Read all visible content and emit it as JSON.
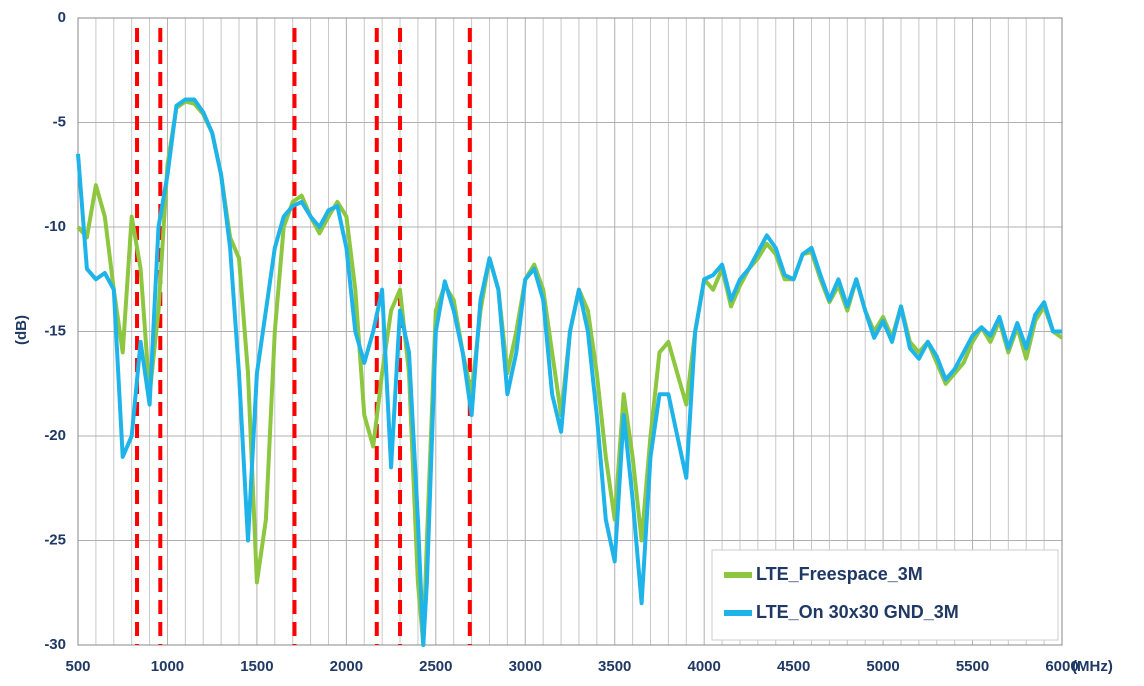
{
  "chart_data": {
    "type": "line",
    "xlabel": "(MHz)",
    "ylabel": "(dB)",
    "xlim": [
      500,
      6000
    ],
    "ylim": [
      -30,
      0
    ],
    "xticks": [
      500,
      1000,
      1500,
      2000,
      2500,
      3000,
      3500,
      4000,
      4500,
      5000,
      5500,
      6000
    ],
    "yticks": [
      0,
      -5,
      -10,
      -15,
      -20,
      -25,
      -30
    ],
    "xgrid": [
      600,
      700,
      800,
      900,
      1100,
      1200,
      1300,
      1400,
      1600,
      1700,
      1800,
      1900,
      2100,
      2200,
      2300,
      2400,
      2600,
      2700,
      2800,
      2900,
      3100,
      3200,
      3300,
      3400,
      3600,
      3700,
      3800,
      3900,
      4100,
      4200,
      4300,
      4400,
      4600,
      4700,
      4800,
      4900,
      5100,
      5200,
      5300,
      5400,
      5600,
      5700,
      5800,
      5900
    ],
    "grid": true,
    "markers": [
      830,
      960,
      1710,
      2170,
      2300,
      2690
    ],
    "marker_color": "#ff0000",
    "legend": "lower right",
    "x": [
      500,
      550,
      600,
      650,
      700,
      750,
      800,
      850,
      900,
      950,
      1000,
      1050,
      1100,
      1150,
      1200,
      1250,
      1300,
      1350,
      1400,
      1450,
      1500,
      1550,
      1600,
      1650,
      1700,
      1750,
      1800,
      1850,
      1900,
      1950,
      2000,
      2050,
      2100,
      2150,
      2200,
      2250,
      2300,
      2350,
      2400,
      2430,
      2450,
      2500,
      2550,
      2600,
      2650,
      2700,
      2750,
      2800,
      2850,
      2900,
      2950,
      3000,
      3050,
      3100,
      3150,
      3200,
      3250,
      3300,
      3350,
      3400,
      3450,
      3500,
      3550,
      3600,
      3650,
      3700,
      3750,
      3800,
      3850,
      3900,
      3950,
      4000,
      4050,
      4100,
      4150,
      4200,
      4250,
      4300,
      4350,
      4400,
      4450,
      4500,
      4550,
      4600,
      4650,
      4700,
      4750,
      4800,
      4850,
      4900,
      4950,
      5000,
      5050,
      5100,
      5150,
      5200,
      5250,
      5300,
      5350,
      5400,
      5450,
      5500,
      5550,
      5600,
      5650,
      5700,
      5750,
      5800,
      5850,
      5900,
      5950,
      6000
    ],
    "series": [
      {
        "name": "LTE_Freespace_3M",
        "color": "#8dc63f",
        "values": [
          -10,
          -10.5,
          -8,
          -9.5,
          -13,
          -16,
          -9.5,
          -12,
          -18,
          -14,
          -7,
          -4.3,
          -4,
          -4.1,
          -4.6,
          -5.5,
          -7.5,
          -10.5,
          -11.5,
          -17,
          -27,
          -24,
          -15,
          -10,
          -8.8,
          -8.5,
          -9.5,
          -10.3,
          -9.5,
          -8.8,
          -9.5,
          -13,
          -19,
          -20.5,
          -17,
          -14,
          -13,
          -17,
          -27,
          -30,
          -25,
          -14,
          -12.8,
          -13.5,
          -16,
          -18,
          -14,
          -11.5,
          -13,
          -17,
          -15,
          -12.5,
          -11.8,
          -13,
          -16,
          -19,
          -15,
          -13,
          -14,
          -17,
          -21,
          -24,
          -18,
          -21,
          -25,
          -20,
          -16,
          -15.5,
          -17,
          -18.5,
          -15,
          -12.5,
          -13,
          -12,
          -13.8,
          -12.8,
          -12,
          -11.5,
          -10.8,
          -11.3,
          -12.5,
          -12.5,
          -11.3,
          -11.2,
          -12.5,
          -13.6,
          -12.8,
          -14,
          -12.5,
          -14,
          -15,
          -14.3,
          -15.3,
          -13.8,
          -15.5,
          -16,
          -15.5,
          -16.5,
          -17.5,
          -17,
          -16.5,
          -15.5,
          -14.8,
          -15.5,
          -14.5,
          -16,
          -14.8,
          -16.3,
          -14.5,
          -13.8,
          -15,
          -15.3
        ]
      },
      {
        "name": "LTE_On 30x30 GND_3M",
        "color": "#1eb4ea",
        "values": [
          -6.5,
          -12,
          -12.5,
          -12.2,
          -13,
          -21,
          -20,
          -15.5,
          -18.5,
          -10,
          -7.5,
          -4.2,
          -3.9,
          -3.9,
          -4.5,
          -5.5,
          -7.5,
          -11,
          -17,
          -25,
          -17,
          -14,
          -11,
          -9.5,
          -9,
          -8.8,
          -9.5,
          -10,
          -9.2,
          -9,
          -11,
          -15,
          -16.5,
          -15,
          -13,
          -21.5,
          -14,
          -16,
          -24,
          -30,
          -27,
          -15,
          -12.6,
          -14,
          -16,
          -19,
          -13.5,
          -11.5,
          -13,
          -18,
          -16,
          -12.5,
          -12,
          -13.5,
          -18,
          -19.8,
          -15,
          -13,
          -15,
          -19,
          -24,
          -26,
          -19,
          -23,
          -28,
          -21,
          -18,
          -18,
          -20,
          -22,
          -15,
          -12.5,
          -12.3,
          -11.8,
          -13.5,
          -12.5,
          -12,
          -11.2,
          -10.4,
          -11,
          -12.3,
          -12.5,
          -11.3,
          -11,
          -12.3,
          -13.5,
          -12.5,
          -13.8,
          -12.5,
          -14,
          -15.3,
          -14.5,
          -15.5,
          -13.8,
          -15.8,
          -16.3,
          -15.5,
          -16.2,
          -17.3,
          -16.8,
          -16,
          -15.2,
          -14.8,
          -15.2,
          -14.3,
          -15.8,
          -14.6,
          -15.8,
          -14.2,
          -13.6,
          -15,
          -15
        ]
      }
    ]
  }
}
